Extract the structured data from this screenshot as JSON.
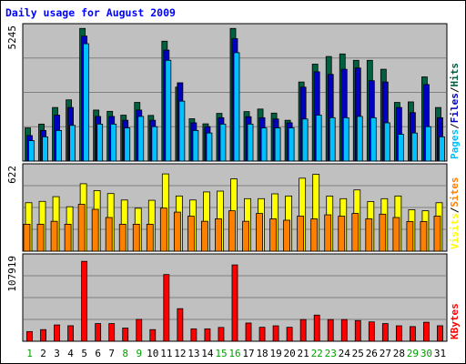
{
  "chart_data": {
    "type": "bar",
    "title": "Daily usage for August 2009",
    "colors": {
      "title": "#0000ff",
      "plot_bg": "#c0c0c0",
      "hits": "#006040",
      "files": "#0000c0",
      "pages": "#00c0ff",
      "visits": "#ffff00",
      "sites": "#ff8000",
      "kb_f": "#ff0000",
      "kb_in": "#0000ff",
      "kb_out": "#008040"
    },
    "days": [
      "1",
      "2",
      "3",
      "4",
      "5",
      "6",
      "7",
      "8",
      "9",
      "10",
      "11",
      "12",
      "13",
      "14",
      "15",
      "16",
      "17",
      "18",
      "19",
      "20",
      "21",
      "22",
      "23",
      "24",
      "25",
      "26",
      "27",
      "28",
      "29",
      "30",
      "31"
    ],
    "weekend_days": [
      "1",
      "8",
      "9",
      "15",
      "16",
      "22",
      "23",
      "29",
      "30"
    ],
    "panels": [
      {
        "id": "hits",
        "max_label": "5245",
        "max": 5245,
        "legend": [
          {
            "text": "Pages",
            "color": "#00c0ff"
          },
          {
            "text": "/",
            "color": "#000000"
          },
          {
            "text": "Files",
            "color": "#0000c0"
          },
          {
            "text": "/",
            "color": "#000000"
          },
          {
            "text": "Hits",
            "color": "#006040"
          }
        ],
        "series": [
          {
            "name": "Hits",
            "color": "#006040",
            "values": [
              1300,
              1450,
              2100,
              2400,
              5200,
              2000,
              1950,
              1800,
              2300,
              1790,
              4700,
              2900,
              1660,
              1460,
              1870,
              5200,
              1940,
              2040,
              1880,
              1600,
              3100,
              3800,
              4100,
              4200,
              3950,
              3950,
              3600,
              2300,
              2320,
              3300,
              2100
            ]
          },
          {
            "name": "Files",
            "color": "#0000c0",
            "values": [
              1000,
              1200,
              1800,
              2100,
              4900,
              1750,
              1750,
              1600,
              2000,
              1600,
              4350,
              3070,
              1500,
              1350,
              1700,
              4800,
              1740,
              1700,
              1650,
              1500,
              2900,
              3500,
              3400,
              3600,
              3650,
              3150,
              3100,
              2100,
              1900,
              3000,
              1700
            ]
          },
          {
            "name": "Pages",
            "color": "#00c0ff",
            "values": [
              800,
              950,
              1200,
              1400,
              4600,
              1450,
              1450,
              1300,
              1750,
              1350,
              3950,
              2350,
              1200,
              1100,
              1450,
              4250,
              1450,
              1300,
              1300,
              1300,
              1650,
              1800,
              1700,
              1700,
              1750,
              1700,
              1500,
              1050,
              1100,
              1350,
              950
            ]
          }
        ]
      },
      {
        "id": "visits",
        "max_label": "622",
        "max": 622,
        "legend": [
          {
            "text": "Visits",
            "color": "#ffff00"
          },
          {
            "text": "/",
            "color": "#000000"
          },
          {
            "text": "Sites",
            "color": "#ff8000"
          }
        ],
        "series": [
          {
            "name": "Visits",
            "color": "#ffff00",
            "values": [
              360,
              370,
              405,
              330,
              501,
              450,
              428,
              380,
              319,
              378,
              574,
              410,
              380,
              440,
              446,
              537,
              390,
              390,
              426,
              410,
              542,
              571,
              409,
              390,
              455,
              369,
              390,
              410,
              308,
              300,
              360
            ]
          },
          {
            "name": "Sites",
            "color": "#ff8000",
            "values": [
              200,
              200,
              222,
              200,
              348,
              311,
              250,
              200,
              200,
              200,
              320,
              290,
              260,
              222,
              240,
              300,
              222,
              280,
              240,
              230,
              260,
              240,
              270,
              260,
              280,
              240,
              275,
              250,
              220,
              220,
              260
            ]
          }
        ]
      },
      {
        "id": "kbytes",
        "max_label": "107919",
        "max": 107919,
        "legend": [
          {
            "text": "KBytes",
            "color": "#ff0000"
          }
        ],
        "series": [
          {
            "name": "KBytes",
            "color": "#ff0000",
            "values": [
              12500,
              15000,
              21000,
              20000,
              103000,
              22800,
              22800,
              17000,
              28200,
              15000,
              86000,
              42000,
              16000,
              16000,
              17800,
              98400,
              23500,
              18000,
              19900,
              18000,
              28000,
              33700,
              28000,
              28000,
              26700,
              25000,
              22800,
              19900,
              18900,
              24500,
              20000
            ]
          }
        ]
      }
    ]
  }
}
